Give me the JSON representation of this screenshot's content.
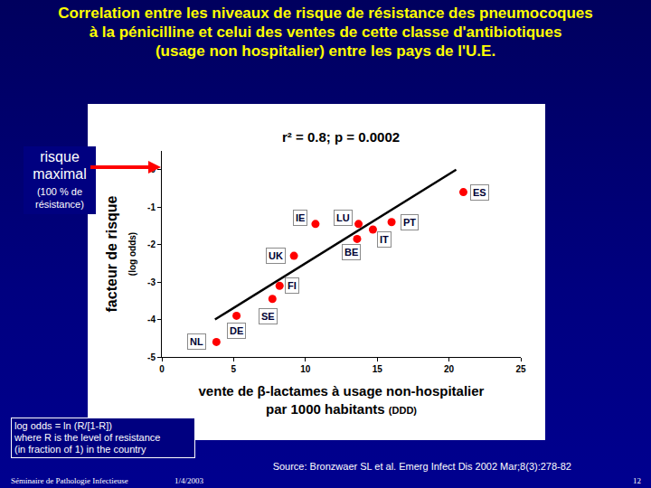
{
  "chart_data": {
    "type": "scatter",
    "title": [
      "Correlation entre les niveaux de risque de résistance des pneumocoques",
      "à la pénicilline et celui des ventes de cette classe d'antibiotiques",
      "(usage non hospitalier) entre les pays de l'U.E."
    ],
    "x_label": [
      "vente de β-lactames à usage non-hospitalier",
      "par 1000 habitants"
    ],
    "x_label_unit": "(DDD)",
    "y_label": "facteur de risque",
    "y_label_unit": "(log odds)",
    "annotations": [
      "r² = 0.8; p = 0.0002"
    ],
    "labels": [
      "NL",
      "DE",
      "SE",
      "FI",
      "UK",
      "IE",
      "BE",
      "LU",
      "IT",
      "PT",
      "ES"
    ],
    "x": [
      3.8,
      5.2,
      7.7,
      8.2,
      9.2,
      10.7,
      13.6,
      13.7,
      14.7,
      16.0,
      21.0
    ],
    "values": [
      -4.6,
      -3.9,
      -3.45,
      -3.1,
      -2.3,
      -1.45,
      -1.85,
      -1.45,
      -1.6,
      -1.4,
      -0.6
    ],
    "color": "#ff0000",
    "marker": "circle",
    "fit_line": {
      "x": [
        3.7,
        20.5
      ],
      "values": [
        -4.0,
        0
      ],
      "color": "#000000",
      "line_style": "solid"
    },
    "xlim": [
      0,
      25
    ],
    "xticks": [
      0,
      5,
      10,
      15,
      20,
      25
    ],
    "ylim": [
      -5,
      0.5
    ],
    "yticks": [
      -5,
      -4,
      -3,
      -2,
      -1,
      0
    ],
    "grid": false
  },
  "slide": {
    "callout": {
      "title": "risque maximal",
      "subtitle": "(100 % de résistance)"
    },
    "footnote": [
      "log odds = ln (R/[1-R])",
      "where R is the level of resistance",
      "(in fraction of 1) in the country"
    ],
    "source": "Source: Bronzwaer SL et al. Emerg Infect Dis 2002 Mar;8(3):278-82",
    "footer": {
      "left": "Séminaire de Pathologie Infectieuse",
      "date": "1/4/2003",
      "page": "12"
    }
  }
}
